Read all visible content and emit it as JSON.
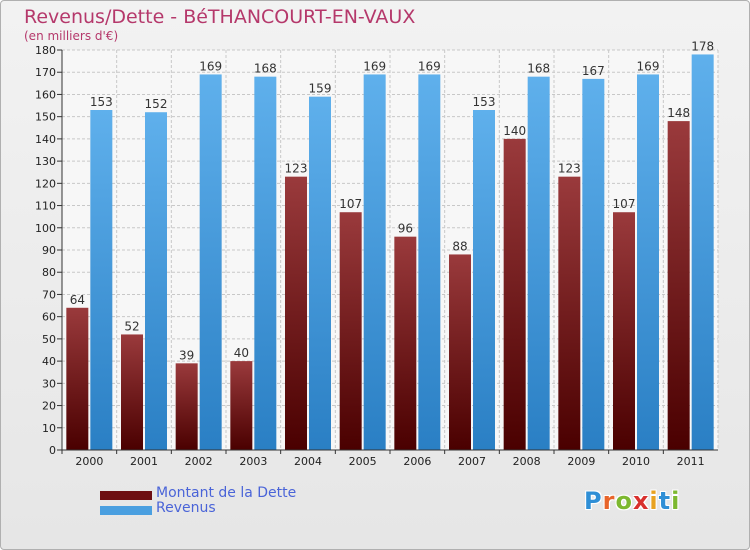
{
  "title": "Revenus/Dette - BéTHANCOURT-EN-VAUX",
  "subtitle": "(en milliers d'€)",
  "colors": {
    "title": "#b5386b",
    "grid": "#c8c8c8",
    "axis_text": "#222222",
    "legend_text": "#4a64d8"
  },
  "chart_data": {
    "type": "bar",
    "categories": [
      "2000",
      "2001",
      "2002",
      "2003",
      "2004",
      "2005",
      "2006",
      "2007",
      "2008",
      "2009",
      "2010",
      "2011"
    ],
    "series": [
      {
        "name": "Montant de la Dette",
        "color": "#7a1418",
        "values": [
          64,
          52,
          39,
          40,
          123,
          107,
          96,
          88,
          140,
          123,
          107,
          148
        ]
      },
      {
        "name": "Revenus",
        "color": "#4a9fe0",
        "values": [
          153,
          152,
          169,
          168,
          159,
          169,
          169,
          153,
          168,
          167,
          169,
          178
        ]
      }
    ],
    "ylim": [
      0,
      180
    ],
    "y_ticks": [
      0,
      10,
      20,
      30,
      40,
      50,
      60,
      70,
      80,
      90,
      100,
      110,
      120,
      130,
      140,
      150,
      160,
      170,
      180
    ],
    "grid": true,
    "data_labels": true,
    "legend_position": "bottom-left"
  },
  "legend": {
    "items": [
      {
        "label": "Montant de la Dette",
        "color": "#6e0f12"
      },
      {
        "label": "Revenus",
        "color": "#4a9fe0"
      }
    ]
  },
  "logo": {
    "letters": [
      "P",
      "r",
      "o",
      "x",
      "i",
      "t",
      "i"
    ],
    "colors": [
      "#2f8fd6",
      "#e8642a",
      "#7cb82f",
      "#d8302d",
      "#e8a21f",
      "#2f8fd6",
      "#7cb82f"
    ]
  }
}
